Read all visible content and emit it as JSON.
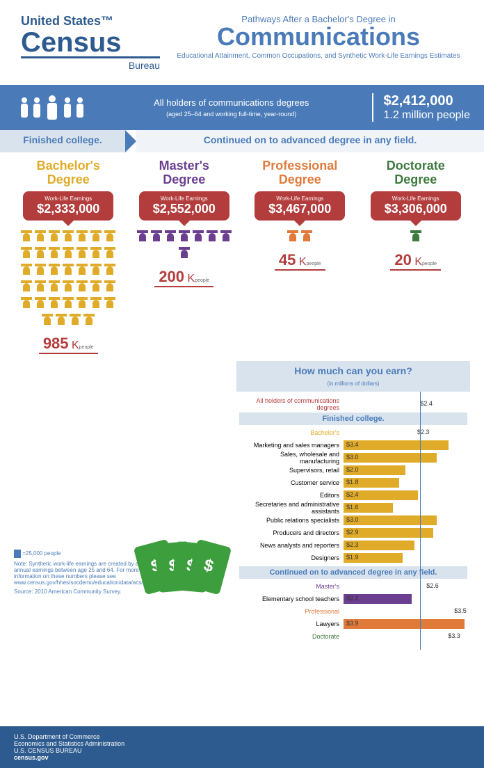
{
  "logo": {
    "top": "United States™",
    "main": "Census",
    "sub": "Bureau"
  },
  "title": {
    "small": "Pathways After a Bachelor's Degree in",
    "main": "Communications",
    "sub": "Educational Attainment, Common Occupations, and\nSynthetic Work-Life Earnings Estimates"
  },
  "band": {
    "text": "All holders of communications degrees",
    "sub": "(aged 25–64 and working full-time, year-round)",
    "amount": "$2,412,000",
    "people": "1.2 million people"
  },
  "split": {
    "left": "Finished college.",
    "right": "Continued on to advanced degree in any field."
  },
  "degrees": [
    {
      "key": "bach",
      "title": "Bachelor's Degree",
      "label": "Work-Life Earnings",
      "amount": "$2,333,000",
      "count_num": "985",
      "count_k": "K",
      "count_ppl": "people",
      "icons": 39,
      "color": "#e0ab28"
    },
    {
      "key": "mast",
      "title": "Master's Degree",
      "label": "Work-Life Earnings",
      "amount": "$2,552,000",
      "count_num": "200",
      "count_k": "K",
      "count_ppl": "people",
      "icons": 8,
      "color": "#6b3e8f"
    },
    {
      "key": "prof",
      "title": "Professional Degree",
      "label": "Work-Life Earnings",
      "amount": "$3,467,000",
      "count_num": "45",
      "count_k": "K",
      "count_ppl": "people",
      "icons": 2,
      "color": "#e07b3c"
    },
    {
      "key": "doct",
      "title": "Doctorate Degree",
      "label": "Work-Life Earnings",
      "amount": "$3,306,000",
      "count_num": "20",
      "count_k": "K",
      "count_ppl": "people",
      "icons": 1,
      "color": "#3d7a3d"
    }
  ],
  "chart": {
    "title": "How much can you earn?",
    "title_sub": "(in millions of dollars)",
    "max": 4.0,
    "axis_pos": 2.4,
    "sections": [
      {
        "header": null,
        "rows": [
          {
            "label": "All holders of communications degrees",
            "value": 2.4,
            "display": "$2.4",
            "color": "#b33c3c",
            "no_bar": true,
            "label_color": "#b33c3c"
          }
        ]
      },
      {
        "header": "Finished college.",
        "rows": [
          {
            "label": "Bachelor's",
            "value": 2.3,
            "display": "$2.3",
            "color": "#e0ab28",
            "no_bar": true,
            "label_color": "#e0ab28"
          },
          {
            "label": "Marketing and sales managers",
            "value": 3.4,
            "display": "$3.4",
            "color": "#e0ab28"
          },
          {
            "label": "Sales, wholesale and manufacturing",
            "value": 3.0,
            "display": "$3.0",
            "color": "#e0ab28"
          },
          {
            "label": "Supervisors, retail",
            "value": 2.0,
            "display": "$2.0",
            "color": "#e0ab28"
          },
          {
            "label": "Customer service",
            "value": 1.8,
            "display": "$1.8",
            "color": "#e0ab28"
          },
          {
            "label": "Editors",
            "value": 2.4,
            "display": "$2.4",
            "color": "#e0ab28"
          },
          {
            "label": "Secretaries and administrative assistants",
            "value": 1.6,
            "display": "$1.6",
            "color": "#e0ab28"
          },
          {
            "label": "Public relations specialists",
            "value": 3.0,
            "display": "$3.0",
            "color": "#e0ab28"
          },
          {
            "label": "Producers and directors",
            "value": 2.9,
            "display": "$2.9",
            "color": "#e0ab28"
          },
          {
            "label": "News analysts and reporters",
            "value": 2.3,
            "display": "$2.3",
            "color": "#e0ab28"
          },
          {
            "label": "Designers",
            "value": 1.9,
            "display": "$1.9",
            "color": "#e0ab28"
          }
        ]
      },
      {
        "header": "Continued on to advanced degree in any field.",
        "rows": [
          {
            "label": "Master's",
            "value": 2.6,
            "display": "$2.6",
            "color": "#6b3e8f",
            "no_bar": true,
            "label_color": "#6b3e8f"
          },
          {
            "label": "Elementary school teachers",
            "value": 2.2,
            "display": "$2.2",
            "color": "#6b3e8f"
          },
          {
            "label": "Professional",
            "value": 3.5,
            "display": "$3.5",
            "color": "#e07b3c",
            "no_bar": true,
            "label_color": "#e07b3c"
          },
          {
            "label": "Lawyers",
            "value": 3.9,
            "display": "$3.9",
            "color": "#e07b3c"
          },
          {
            "label": "Doctorate",
            "value": 3.3,
            "display": "$3.3",
            "color": "#3d7a3d",
            "no_bar": true,
            "label_color": "#3d7a3d"
          }
        ]
      }
    ]
  },
  "footnote": {
    "legend": "=25,000 people",
    "note": "Note: Synthetic work-life earnings are created by adding annual earnings between age 25 and 64. For more information on these numbers please see www.census.gov/hhes/socdemo/education/data/acs/infographics/faqs.html.",
    "source": "Source: 2010 American Community Survey."
  },
  "footer": {
    "l1": "U.S. Department of Commerce",
    "l2": "Economics and Statistics Administration",
    "l3": "U.S. CENSUS BUREAU",
    "l4": "census.gov"
  }
}
